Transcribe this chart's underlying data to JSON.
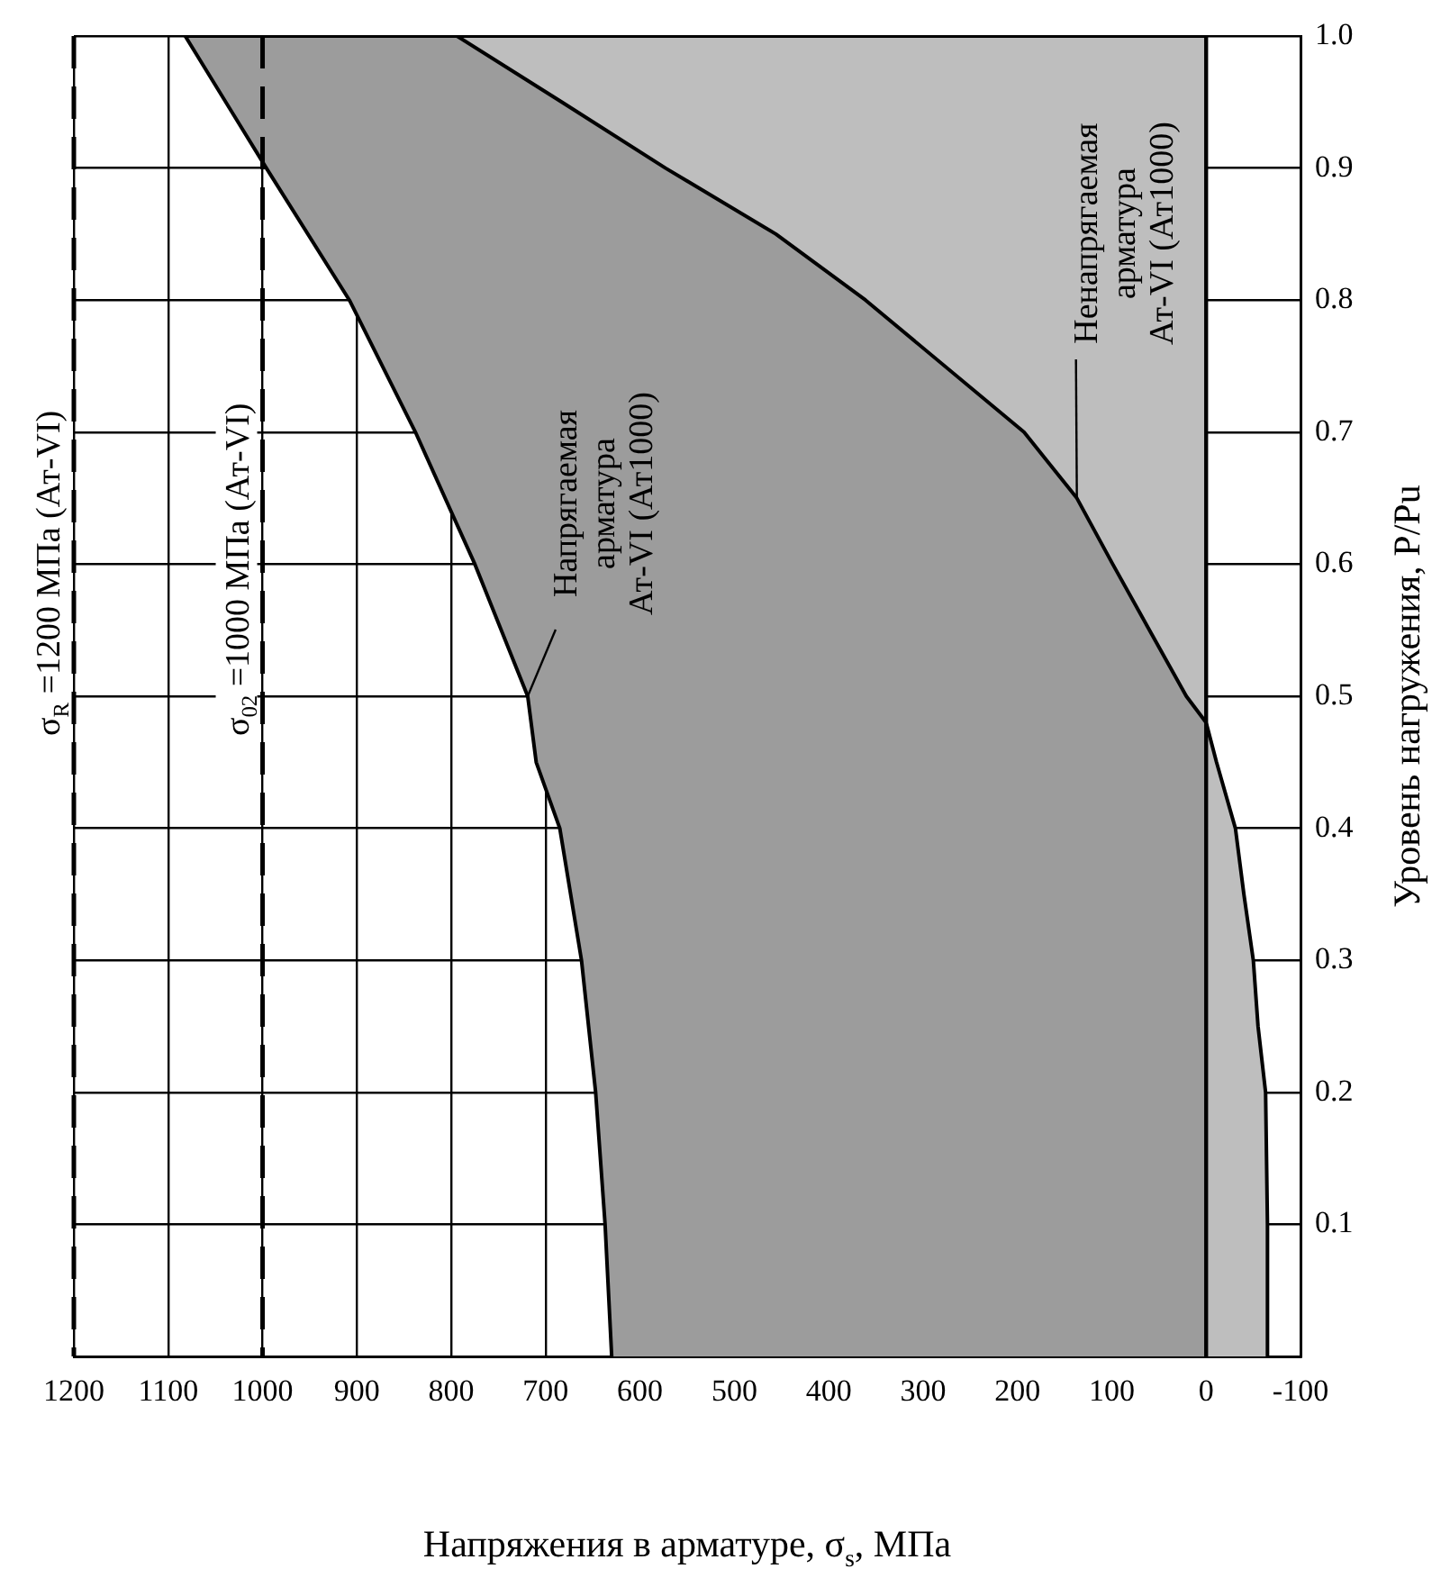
{
  "chart_data": {
    "type": "area",
    "xlabel": "Напряжения в арматуре, σ$_{s}$, МПа",
    "ylabel": "Уровень нагружения, P/Pu",
    "series": [
      {
        "color": "#9c9c9c",
        "x": [
          630,
          637,
          647,
          662,
          685,
          710,
          719,
          775,
          838,
          908,
          996,
          1082,
          0,
          0
        ],
        "values": [
          0,
          0.1,
          0.2,
          0.3,
          0.4,
          0.45,
          0.5,
          0.6,
          0.7,
          0.8,
          0.9,
          1.0,
          1.0,
          0
        ]
      },
      {
        "color": "#bebebe",
        "x": [
          -65,
          -65,
          -63,
          -55,
          -50,
          -40,
          -31,
          -11,
          0,
          21,
          99,
          137,
          193,
          361,
          456,
          573,
          683,
          794,
          0,
          0
        ],
        "values": [
          0,
          0.1,
          0.2,
          0.25,
          0.3,
          0.35,
          0.4,
          0.45,
          0.48,
          0.5,
          0.6,
          0.65,
          0.7,
          0.8,
          0.85,
          0.9,
          0.95,
          1.0,
          1.0,
          0
        ]
      }
    ],
    "xlim": [
      1200,
      -100
    ],
    "xticks": [
      1200,
      1100,
      1000,
      900,
      800,
      700,
      600,
      500,
      400,
      300,
      200,
      100,
      0,
      -100
    ],
    "ylim": [
      0,
      1
    ],
    "yticks": [
      0.1,
      0.2,
      0.3,
      0.4,
      0.5,
      0.6,
      0.7,
      0.8,
      0.9,
      {
        "value": 1,
        "label": "1.0"
      }
    ],
    "grid": true,
    "ref_lines": [
      {
        "axis": "x",
        "value": 1200,
        "label": "σ$_{R}$ =1200 МПа (Ат-VI)",
        "line_style": "dashed"
      },
      {
        "axis": "x",
        "value": 1000,
        "label": "σ$_{02}$ =1000 МПа (Ат-VI)",
        "line_style": "dashed"
      }
    ],
    "annotations": [
      {
        "text": "Напрягаемая\nарматура\nАт-VI (Ат1000)",
        "x": 719,
        "y": 0.5
      },
      {
        "text": "Ненапрягаемая\nарматура\nАт-VI (Ат1000)",
        "x": 137,
        "y": 0.65
      }
    ]
  }
}
